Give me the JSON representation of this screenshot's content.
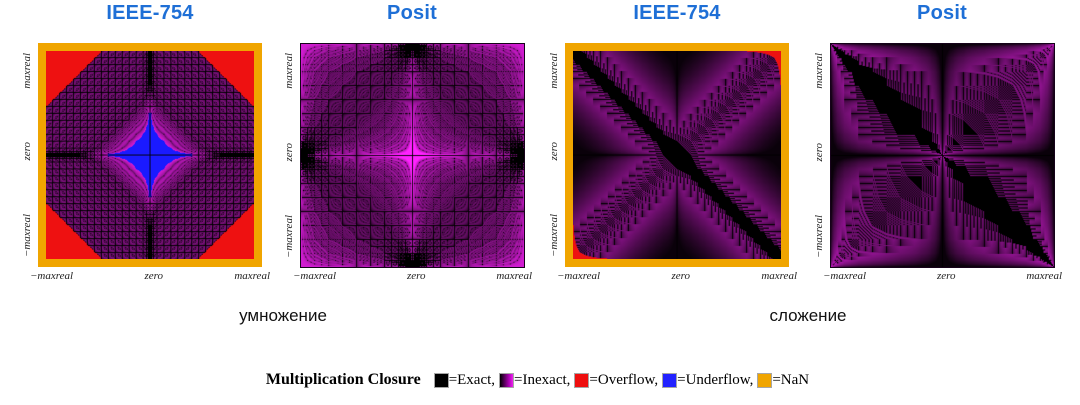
{
  "figure": {
    "panels": [
      {
        "title": "IEEE-754",
        "system": "ieee",
        "op": "mul",
        "group": "умножение"
      },
      {
        "title": "Posit",
        "system": "posit",
        "op": "mul",
        "group": "умножение"
      },
      {
        "title": "IEEE-754",
        "system": "ieee",
        "op": "add",
        "group": "сложение"
      },
      {
        "title": "Posit",
        "system": "posit",
        "op": "add",
        "group": "сложение"
      }
    ],
    "axis": {
      "x_ticks": [
        "−maxreal",
        "zero",
        "maxreal"
      ],
      "y_ticks": [
        "maxreal",
        "zero",
        "−maxreal"
      ]
    },
    "group_labels": {
      "multiplication": "умножение",
      "addition": "сложение"
    },
    "legend": {
      "title": "Multiplication Closure",
      "items": [
        {
          "label": "=Exact,",
          "swatch": "#000000"
        },
        {
          "label": "=Inexact,",
          "swatch": "linear-gradient(90deg,#000000 0%,#b000b8 70%,#ee22ee 100%)"
        },
        {
          "label": "=Overflow,",
          "swatch": "#ee0e0e"
        },
        {
          "label": "=Underflow,",
          "swatch": "#2222ff"
        },
        {
          "label": "=NaN",
          "swatch": "#f0a500"
        }
      ]
    },
    "colors": {
      "title_blue": "#1e6fd6",
      "nan_border_orange": "#f0a500",
      "overflow_red": "#ee1111",
      "underflow_blue": "#1a1aff",
      "exact_black": "#000000",
      "inexact_bright_magenta": "#ee22ee",
      "inexact_mid_purple": "#8b1a8b"
    }
  },
  "chart_data": [
    {
      "type": "heatmap",
      "title": "IEEE-754",
      "operation": "multiplication",
      "group_label": "умножение",
      "x_axis": {
        "ticks": [
          "−maxreal",
          "zero",
          "maxreal"
        ],
        "range": "all representable values from −maxreal to maxreal"
      },
      "y_axis": {
        "ticks": [
          "maxreal",
          "zero",
          "−maxreal"
        ]
      },
      "legend_categories": [
        "Exact",
        "Inexact",
        "Overflow",
        "Underflow",
        "NaN"
      ],
      "regions": [
        {
          "category": "NaN",
          "color": "#f0a500",
          "location": "thick gold border framing the whole square (non-real inputs)"
        },
        {
          "category": "Overflow",
          "color": "#ee1111",
          "location": "four large corner triangles where |x·y| > maxreal"
        },
        {
          "category": "Underflow",
          "color": "#1a1aff",
          "location": "four-pointed blue star around center where 0 < |x·y| < minreal"
        },
        {
          "category": "Exact",
          "color": "#000000",
          "location": "black cross along the zero row/column plus fractal lattice of exact products"
        },
        {
          "category": "Inexact",
          "color": "black-to-magenta shading by rounding error",
          "location": "remaining purple tiled diamond area"
        }
      ]
    },
    {
      "type": "heatmap",
      "title": "Posit",
      "operation": "multiplication",
      "group_label": "умножение",
      "x_axis": {
        "ticks": [
          "−maxreal",
          "zero",
          "maxreal"
        ]
      },
      "y_axis": {
        "ticks": [
          "maxreal",
          "zero",
          "−maxreal"
        ]
      },
      "legend_categories": [
        "Exact",
        "Inexact"
      ],
      "regions": [
        {
          "category": "Exact",
          "color": "#000000",
          "location": "black grid lattice, black blobs at the midpoint of each edge and dense exact dots toward corners"
        },
        {
          "category": "Inexact",
          "color": "black-to-magenta shading by rounding error",
          "location": "everywhere else; brightest magenta cross through center and bright rim at plot edges"
        },
        {
          "category": "Overflow/Underflow/NaN",
          "color": "none",
          "location": "absent — no gold border, no red, no blue"
        }
      ]
    },
    {
      "type": "heatmap",
      "title": "IEEE-754",
      "operation": "addition",
      "group_label": "сложение",
      "x_axis": {
        "ticks": [
          "−maxreal",
          "zero",
          "maxreal"
        ]
      },
      "y_axis": {
        "ticks": [
          "maxreal",
          "zero",
          "−maxreal"
        ]
      },
      "legend_categories": [
        "Exact",
        "Inexact",
        "Overflow",
        "NaN"
      ],
      "regions": [
        {
          "category": "NaN",
          "color": "#f0a500",
          "location": "thick gold border framing the whole square"
        },
        {
          "category": "Overflow",
          "color": "#ee1111",
          "location": "small red triangles in top-right and bottom-left corners where |x+y| > maxreal"
        },
        {
          "category": "Exact",
          "color": "#000000",
          "location": "broad black anti-diagonal band where x + y ≈ 0, widening at center, with comb-like exact fringes"
        },
        {
          "category": "Inexact",
          "color": "black-to-magenta shading by rounding error",
          "location": "purple areas above and below the diagonal with fractal step patterns"
        }
      ]
    },
    {
      "type": "heatmap",
      "title": "Posit",
      "operation": "addition",
      "group_label": "сложение",
      "x_axis": {
        "ticks": [
          "−maxreal",
          "zero",
          "maxreal"
        ]
      },
      "y_axis": {
        "ticks": [
          "maxreal",
          "zero",
          "−maxreal"
        ]
      },
      "legend_categories": [
        "Exact",
        "Inexact"
      ],
      "regions": [
        {
          "category": "Exact",
          "color": "#000000",
          "location": "black anti-diagonal wedges from top-left and to bottom-right corner (x + y ≈ 0) with comb fringes"
        },
        {
          "category": "Inexact",
          "color": "black-to-magenta shading by rounding error",
          "location": "four purple quadrant blocks, bright magenta glow along outer edges and center cross"
        },
        {
          "category": "Overflow/Underflow/NaN",
          "color": "none",
          "location": "absent — no gold border"
        }
      ]
    }
  ]
}
